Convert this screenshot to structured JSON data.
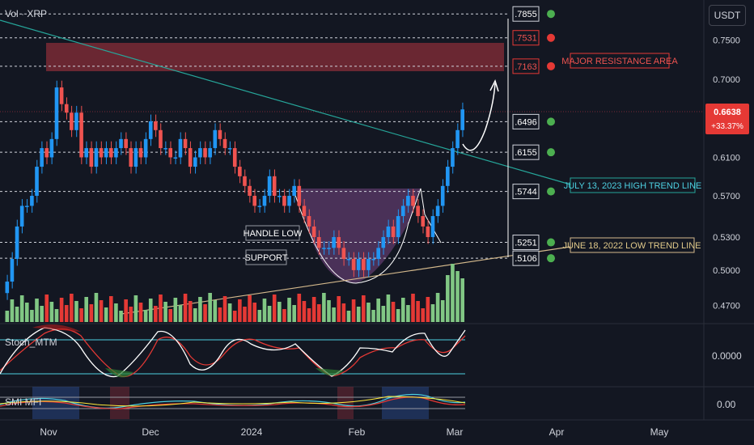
{
  "header": {
    "symbol_label": "Vol · XRP",
    "currency_button": "USDT"
  },
  "price_badge": {
    "price": "0.6638",
    "change": "+33.37%"
  },
  "y_axis_ticks": [
    "0.7500",
    "0.7000",
    "0.6100",
    "0.5700",
    "0.5300",
    "0.5000",
    "0.4700"
  ],
  "x_axis_ticks": [
    "Nov",
    "Dec",
    "2024",
    "Feb",
    "Mar",
    "Apr",
    "May"
  ],
  "level_boxes": [
    ".7855",
    ".7531",
    ".7163",
    ".6496",
    ".6155",
    ".5744",
    ".5251",
    ".5106"
  ],
  "level_dot_colors": [
    "#4caf50",
    "#e53935",
    "#e53935",
    "#4caf50",
    "#4caf50",
    "#4caf50",
    "#4caf50",
    "#4caf50"
  ],
  "annotations": {
    "resistance": "MAJOR RESISTANCE AREA",
    "high_trend": "JULY 13, 2023 HIGH TREND LINE",
    "low_trend": "JUNE 18, 2022 LOW TREND LINE",
    "handle_low": "HANDLE LOW",
    "support": "SUPPORT"
  },
  "stoch_pane": {
    "label": "Stoch_MTM",
    "tick": "0.0000"
  },
  "smi_pane": {
    "label": "SMI MFI",
    "tick": "0.00"
  },
  "colors": {
    "up": "#81c784",
    "down": "#e53935",
    "candle_up": "#2196f3",
    "candle_down": "#ef5350",
    "resistance_zone": "#7a2a35",
    "cup": "#5d3b6b",
    "trend_high": "#26a69a",
    "trend_low": "#d4b98c"
  },
  "chart_data": {
    "type": "candlestick",
    "symbol": "XRP",
    "y_scale": "log",
    "ylim": [
      0.455,
      0.805
    ],
    "horizontal_levels": [
      0.7855,
      0.7531,
      0.7163,
      0.6496,
      0.6155,
      0.5744,
      0.5251,
      0.5106
    ],
    "resistance_zone": [
      0.7163,
      0.7531
    ],
    "last_price": 0.6638,
    "change_pct": "+33.37%",
    "approx_closes": [
      0.49,
      0.51,
      0.54,
      0.56,
      0.56,
      0.57,
      0.6,
      0.62,
      0.61,
      0.63,
      0.69,
      0.67,
      0.66,
      0.64,
      0.66,
      0.61,
      0.62,
      0.6,
      0.62,
      0.61,
      0.62,
      0.61,
      0.62,
      0.63,
      0.62,
      0.6,
      0.62,
      0.61,
      0.63,
      0.65,
      0.64,
      0.62,
      0.62,
      0.61,
      0.61,
      0.63,
      0.62,
      0.6,
      0.61,
      0.62,
      0.61,
      0.62,
      0.64,
      0.63,
      0.62,
      0.62,
      0.6,
      0.59,
      0.58,
      0.57,
      0.56,
      0.56,
      0.57,
      0.59,
      0.57,
      0.57,
      0.56,
      0.57,
      0.58,
      0.56,
      0.55,
      0.54,
      0.53,
      0.52,
      0.52,
      0.52,
      0.53,
      0.52,
      0.51,
      0.51,
      0.5,
      0.51,
      0.5,
      0.51,
      0.51,
      0.52,
      0.53,
      0.54,
      0.53,
      0.55,
      0.56,
      0.57,
      0.56,
      0.55,
      0.54,
      0.53,
      0.55,
      0.56,
      0.58,
      0.6,
      0.62,
      0.64,
      0.6638
    ]
  }
}
